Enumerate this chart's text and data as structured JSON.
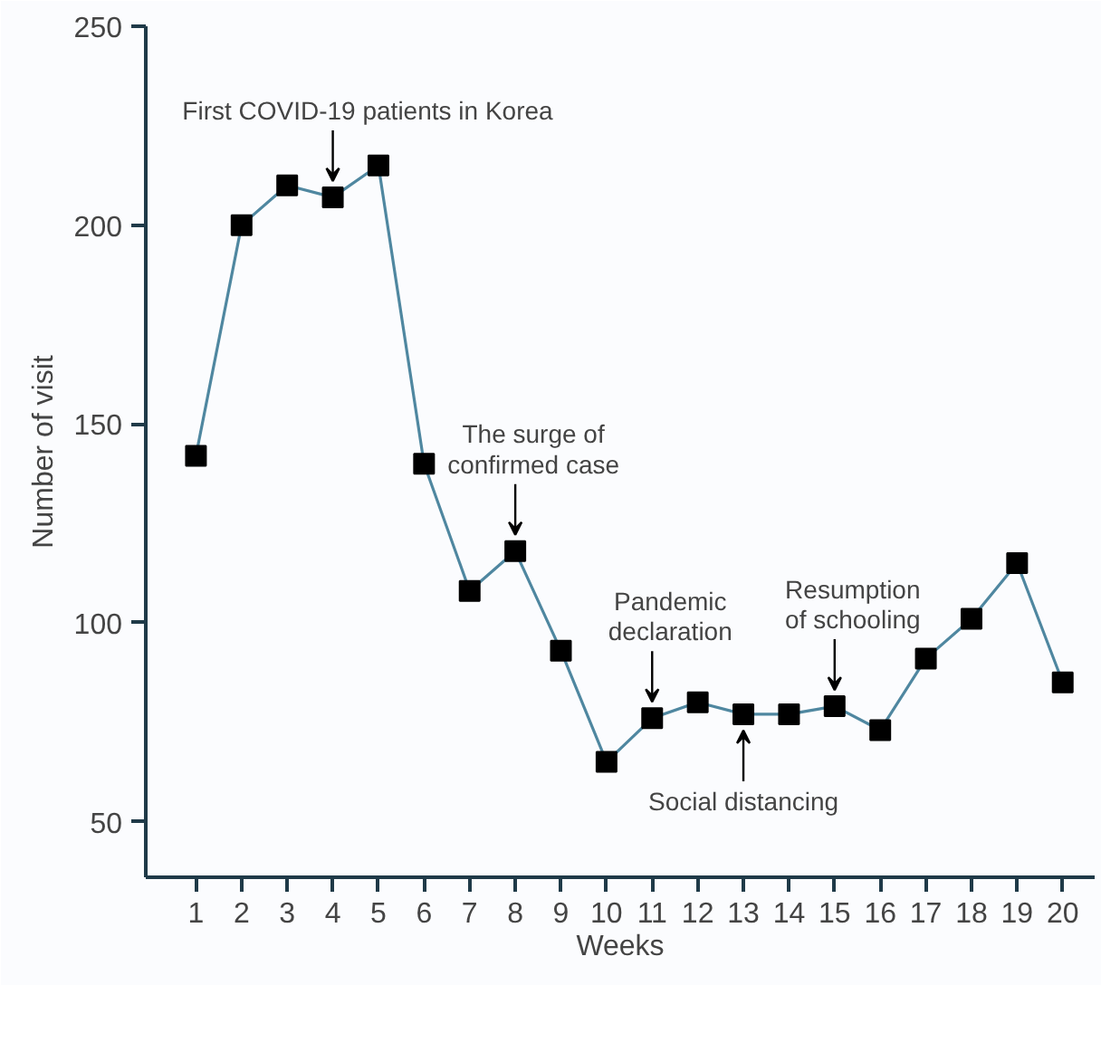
{
  "chart_data": {
    "type": "line",
    "xlabel": "Weeks",
    "ylabel": "Number of visit",
    "x": [
      1,
      2,
      3,
      4,
      5,
      6,
      7,
      8,
      9,
      10,
      11,
      12,
      13,
      14,
      15,
      16,
      17,
      18,
      19,
      20
    ],
    "series": [
      {
        "color": "#4f87a0",
        "values": [
          142,
          200,
          210,
          207,
          215,
          140,
          108,
          118,
          93,
          65,
          76,
          80,
          77,
          77,
          79,
          73,
          91,
          101,
          115,
          85
        ]
      }
    ],
    "xlim": [
      -0.1,
      20.7
    ],
    "xticks": [
      1,
      2,
      3,
      4,
      5,
      6,
      7,
      8,
      9,
      10,
      11,
      12,
      13,
      14,
      15,
      16,
      17,
      18,
      19,
      20
    ],
    "ylim": [
      36,
      250
    ],
    "yticks": [
      50,
      100,
      150,
      200,
      250
    ],
    "marker": "square",
    "line_style": "solid",
    "grid": false,
    "annotations": [
      {
        "text": "First COVID-19 patients in Korea",
        "x": 4,
        "y": 207
      },
      {
        "text": "The surge of\nconfirmed case",
        "x": 8,
        "y": 118
      },
      {
        "text": "Pandemic\ndeclaration",
        "x": 11,
        "y": 76
      },
      {
        "text": "Social distancing",
        "x": 13,
        "y": 77
      },
      {
        "text": "Resumption\nof schooling",
        "x": 15,
        "y": 79
      }
    ]
  }
}
